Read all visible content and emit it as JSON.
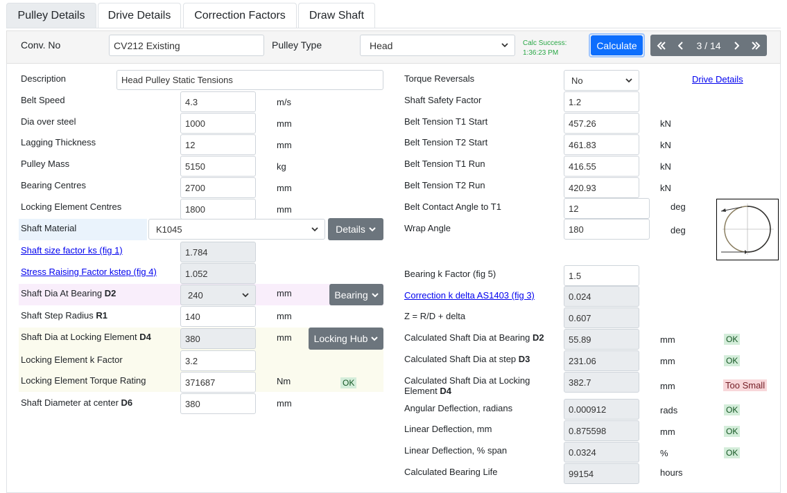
{
  "tabs": [
    {
      "label": "Pulley Details",
      "active": true
    },
    {
      "label": "Drive Details"
    },
    {
      "label": "Correction Factors"
    },
    {
      "label": "Draw Shaft"
    }
  ],
  "header": {
    "conv_no_label": "Conv. No",
    "conv_no_value": "CV212 Existing",
    "pulley_type_label": "Pulley Type",
    "pulley_type_value": "Head",
    "calc_status_line1": "Calc Success:",
    "calc_status_line2": "1:36:23 PM",
    "calculate_label": "Calculate",
    "record_counter": "3 / 14"
  },
  "left": {
    "description": {
      "label": "Description",
      "value": "Head Pulley Static Tensions"
    },
    "belt_speed": {
      "label": "Belt Speed",
      "value": "4.3",
      "unit": "m/s"
    },
    "dia_over_steel": {
      "label": "Dia over steel",
      "value": "1000",
      "unit": "mm"
    },
    "lagging_thickness": {
      "label": "Lagging Thickness",
      "value": "12",
      "unit": "mm"
    },
    "pulley_mass": {
      "label": "Pulley Mass",
      "value": "5150",
      "unit": "kg"
    },
    "bearing_centres": {
      "label": "Bearing Centres",
      "value": "2700",
      "unit": "mm"
    },
    "locking_element_centres": {
      "label": "Locking Element Centres",
      "value": "1800",
      "unit": "mm"
    },
    "shaft_material": {
      "label": "Shaft Material",
      "value": "K1045",
      "button": "Details"
    },
    "shaft_size_factor": {
      "label": "Shaft size factor ks (fig 1)",
      "value": "1.784"
    },
    "stress_raising_factor": {
      "label": "Stress Raising Factor kstep (fig 4)",
      "value": "1.052"
    },
    "shaft_dia_bearing": {
      "label": "Shaft Dia At Bearing ",
      "label_bold": "D2",
      "value": "240",
      "unit": "mm",
      "button": "Bearing"
    },
    "shaft_step_radius": {
      "label": "Shaft Step Radius ",
      "label_bold": "R1",
      "value": "140",
      "unit": "mm"
    },
    "shaft_dia_locking": {
      "label": "Shaft Dia at Locking Element ",
      "label_bold": "D4",
      "value": "380",
      "unit": "mm",
      "button": "Locking Hub"
    },
    "locking_k_factor": {
      "label": "Locking Element k Factor",
      "value": "3.2"
    },
    "locking_torque": {
      "label": "Locking Element Torque Rating",
      "value": "371687",
      "unit": "Nm",
      "status": "OK"
    },
    "shaft_dia_center": {
      "label": "Shaft Diameter at center ",
      "label_bold": "D6",
      "value": "380",
      "unit": "mm"
    }
  },
  "right": {
    "torque_reversals": {
      "label": "Torque Reversals",
      "value": "No"
    },
    "drive_details_link": "Drive Details",
    "shaft_safety_factor": {
      "label": "Shaft Safety Factor",
      "value": "1.2"
    },
    "t1_start": {
      "label": "Belt Tension T1 Start",
      "value": "457.26",
      "unit": "kN"
    },
    "t2_start": {
      "label": "Belt Tension T2 Start",
      "value": "461.83",
      "unit": "kN"
    },
    "t1_run": {
      "label": "Belt Tension T1 Run",
      "value": "416.55",
      "unit": "kN"
    },
    "t2_run": {
      "label": "Belt Tension T2 Run",
      "value": "420.93",
      "unit": "kN"
    },
    "contact_angle": {
      "label": "Belt Contact Angle to T1",
      "value": "12",
      "unit": "deg"
    },
    "wrap_angle": {
      "label": "Wrap Angle",
      "value": "180",
      "unit": "deg"
    },
    "bearing_k_factor": {
      "label": "Bearing k Factor (fig 5)",
      "value": "1.5"
    },
    "correction_k_delta": {
      "label": "Correction k delta AS1403 (fig 3)",
      "value": "0.024"
    },
    "z_ratio": {
      "label": "Z = R/D + delta",
      "value": "0.607"
    },
    "calc_dia_bearing": {
      "label": "Calculated Shaft Dia at Bearing ",
      "label_bold": "D2",
      "value": "55.89",
      "unit": "mm",
      "status": "OK"
    },
    "calc_dia_step": {
      "label": "Calculated Shaft Dia at step ",
      "label_bold": "D3",
      "value": "231.06",
      "unit": "mm",
      "status": "OK"
    },
    "calc_dia_locking": {
      "label_line1": "Calculated Shaft Dia at Locking",
      "label_line2": "Element ",
      "label_bold": "D4",
      "value": "382.7",
      "unit": "mm",
      "status": "Too Small"
    },
    "angular_deflection": {
      "label": "Angular Deflection, radians",
      "value": "0.000912",
      "unit": "rads",
      "status": "OK"
    },
    "linear_deflection_mm": {
      "label": "Linear Deflection, mm",
      "value": "0.875598",
      "unit": "mm",
      "status": "OK"
    },
    "linear_deflection_pct": {
      "label": "Linear Deflection, % span",
      "value": "0.0324",
      "unit": "%",
      "status": "OK"
    },
    "bearing_life": {
      "label": "Calculated Bearing Life",
      "value": "99154",
      "unit": "hours"
    }
  },
  "colors": {
    "calculate_button": "#0d6efd",
    "grey_button": "#6c757d",
    "ok_bg": "#d4edda",
    "bad_bg": "#f8d7da",
    "calc_status": "#28a745"
  }
}
